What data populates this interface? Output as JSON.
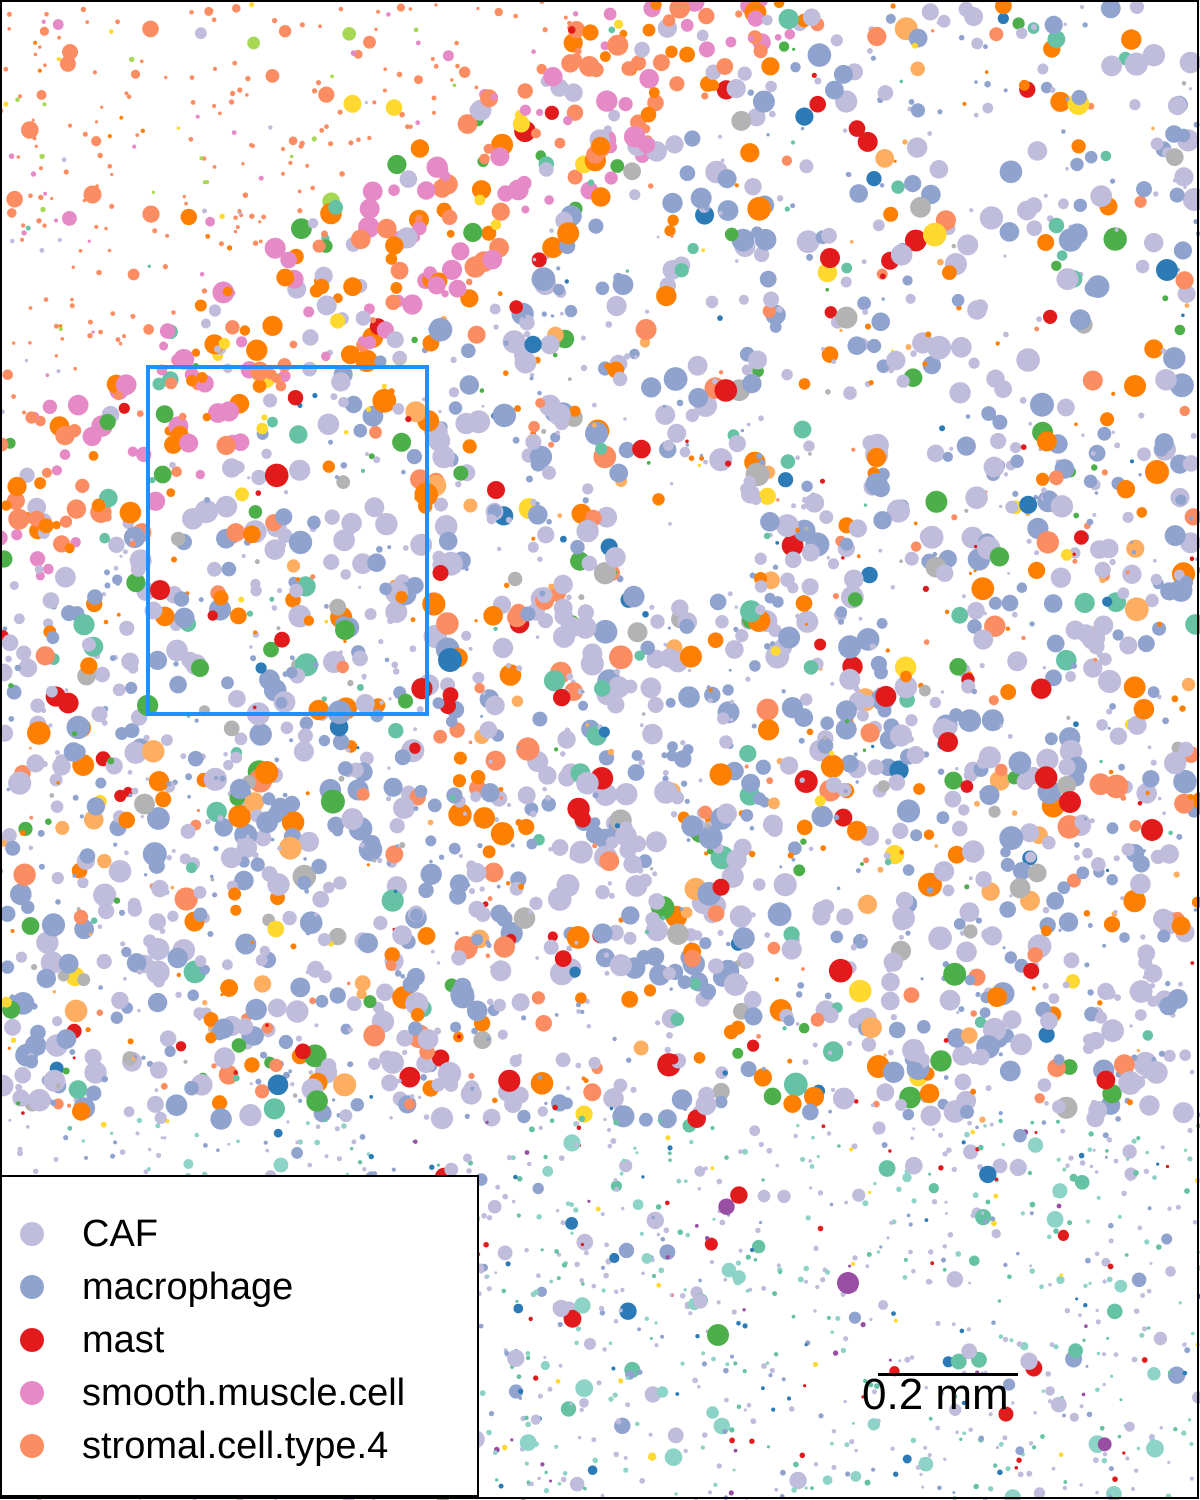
{
  "legend": {
    "items": [
      {
        "label": "CAF",
        "color": "#bfbcdc"
      },
      {
        "label": "macrophage",
        "color": "#8fa3ce"
      },
      {
        "label": "mast",
        "color": "#e31a1c"
      },
      {
        "label": "smooth.muscle.cell",
        "color": "#e58ac6"
      },
      {
        "label": "stromal.cell.type.4",
        "color": "#fc8d62"
      }
    ]
  },
  "scalebar": {
    "label": "0.2 mm"
  },
  "highlight_box": {
    "color": "#1e90ff"
  },
  "other_cell_colors": [
    "#ff7f00",
    "#66c2a5",
    "#4daf4a",
    "#ffd92f",
    "#fdae61",
    "#a6d854",
    "#b3b3b3",
    "#2c7bb6",
    "#984ea3",
    "#ff00ff",
    "#8dd3c7",
    "#f4a582"
  ]
}
